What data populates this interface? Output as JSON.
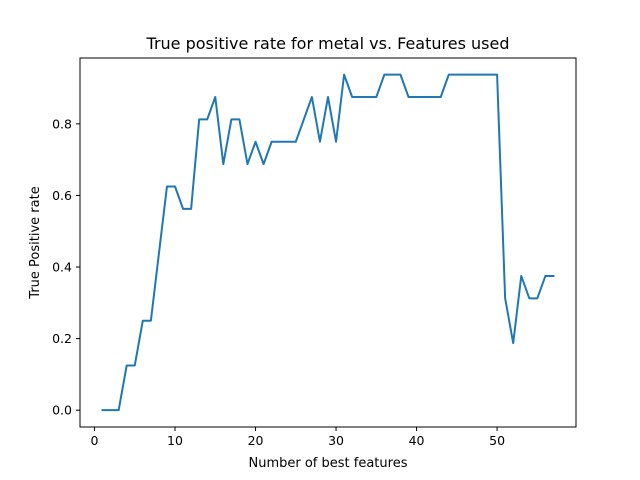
{
  "chart_data": {
    "type": "line",
    "title": "True positive rate for metal vs. Features used",
    "xlabel": "Number of best features",
    "ylabel": "True Positive rate",
    "xlim": [
      -1.8,
      59.8
    ],
    "ylim": [
      -0.047,
      0.984
    ],
    "xticks": [
      0,
      10,
      20,
      30,
      40,
      50
    ],
    "yticks": [
      0.0,
      0.2,
      0.4,
      0.6,
      0.8
    ],
    "ytick_labels": [
      "0.0",
      "0.2",
      "0.4",
      "0.6",
      "0.8"
    ],
    "grid": false,
    "series": [
      {
        "color": "#1f77b4",
        "x": [
          1,
          2,
          3,
          4,
          5,
          6,
          7,
          8,
          9,
          10,
          11,
          12,
          13,
          14,
          15,
          16,
          17,
          18,
          19,
          20,
          21,
          22,
          23,
          24,
          25,
          26,
          27,
          28,
          29,
          30,
          31,
          32,
          33,
          34,
          35,
          36,
          37,
          38,
          39,
          40,
          41,
          42,
          43,
          44,
          45,
          46,
          47,
          48,
          49,
          50,
          51,
          52,
          53,
          54,
          55,
          56,
          57
        ],
        "y": [
          0.0,
          0.0,
          0.0,
          0.125,
          0.125,
          0.25,
          0.25,
          0.4375,
          0.625,
          0.625,
          0.5625,
          0.5625,
          0.8125,
          0.8125,
          0.875,
          0.6875,
          0.8125,
          0.8125,
          0.6875,
          0.75,
          0.6875,
          0.75,
          0.75,
          0.75,
          0.75,
          0.8125,
          0.875,
          0.75,
          0.875,
          0.75,
          0.9375,
          0.875,
          0.875,
          0.875,
          0.875,
          0.9375,
          0.9375,
          0.9375,
          0.875,
          0.875,
          0.875,
          0.875,
          0.875,
          0.9375,
          0.9375,
          0.9375,
          0.9375,
          0.9375,
          0.9375,
          0.9375,
          0.3125,
          0.1875,
          0.375,
          0.3125,
          0.3125,
          0.375,
          0.375
        ]
      }
    ]
  }
}
